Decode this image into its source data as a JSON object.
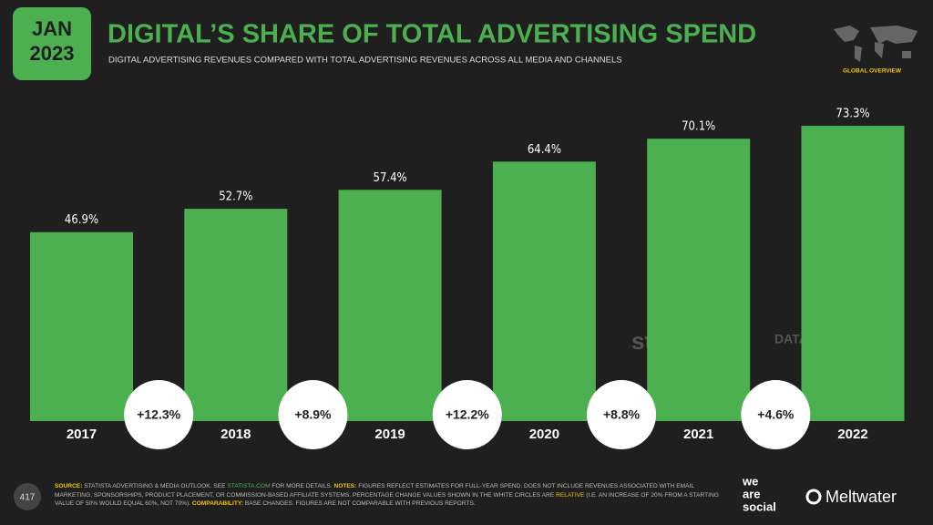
{
  "badge": {
    "month": "JAN",
    "year": "2023"
  },
  "section": "GLOBAL OVERVIEW",
  "page_number": "417",
  "watermarks": [
    "statista",
    "DATAREPORTAL"
  ],
  "brands": {
    "we_are_social": [
      "we",
      "are",
      "social"
    ],
    "meltwater": "Meltwater"
  },
  "footnote": [
    "SOURCE:",
    " STATISTA ADVERTISING & MEDIA OUTLOOK. SEE ",
    "STATISTA.COM",
    " FOR MORE DETAILS. ",
    "NOTES:",
    " FIGURES REFLECT ESTIMATES FOR FULL-YEAR SPEND. DOES NOT INCLUDE REVENUES ASSOCIATED WITH EMAIL MARKETING, SPONSORSHIPS, PRODUCT PLACEMENT, OR COMMISSION-BASED AFFILIATE SYSTEMS. PERCENTAGE CHANGE VALUES SHOWN IN THE WHITE CIRCLES ARE ",
    "RELATIVE",
    " (I.E. AN INCREASE OF 20% FROM A STARTING VALUE OF 50% WOULD EQUAL 60%, NOT 70%). ",
    "COMPARABILITY:",
    " BASE CHANGES. FIGURES ARE NOT COMPARABLE WITH PREVIOUS REPORTS."
  ],
  "chart_data": {
    "type": "bar",
    "title": "DIGITAL’S SHARE OF TOTAL ADVERTISING SPEND",
    "subtitle": "DIGITAL ADVERTISING REVENUES COMPARED WITH TOTAL ADVERTISING REVENUES ACROSS ALL MEDIA AND CHANNELS",
    "categories": [
      "2017",
      "2018",
      "2019",
      "2020",
      "2021",
      "2022"
    ],
    "values": [
      46.9,
      52.7,
      57.4,
      64.4,
      70.1,
      73.3
    ],
    "value_labels": [
      "46.9%",
      "52.7%",
      "57.4%",
      "64.4%",
      "70.1%",
      "73.3%"
    ],
    "changes": [
      "+12.3%",
      "+8.9%",
      "+12.2%",
      "+8.8%",
      "+4.6%"
    ],
    "color": "#4caf50"
  }
}
